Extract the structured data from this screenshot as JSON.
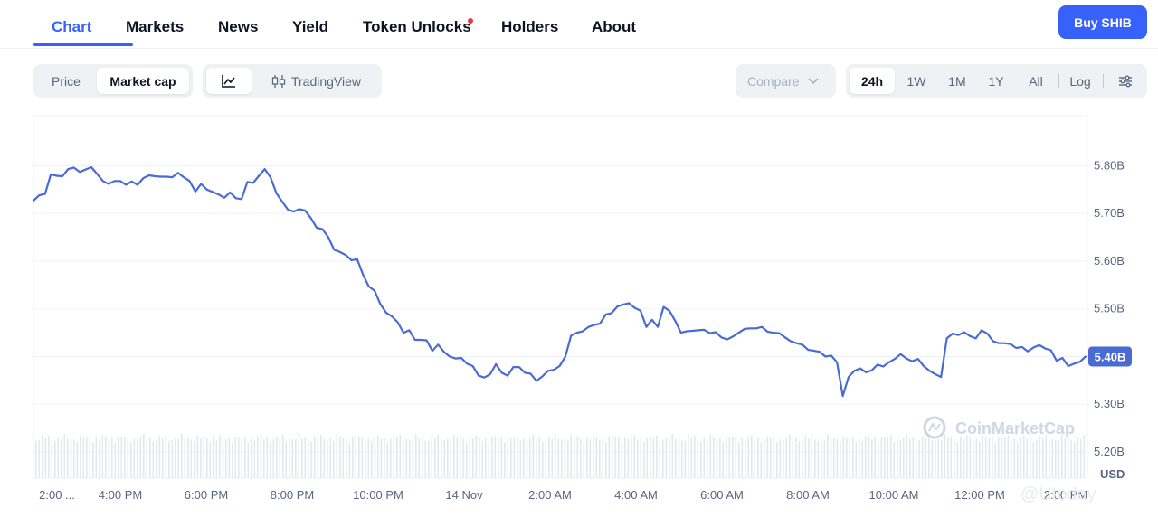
{
  "nav": {
    "tabs": [
      {
        "label": "Chart",
        "active": true
      },
      {
        "label": "Markets"
      },
      {
        "label": "News"
      },
      {
        "label": "Yield"
      },
      {
        "label": "Token Unlocks",
        "has_dot": true
      },
      {
        "label": "Holders"
      },
      {
        "label": "About"
      }
    ],
    "buy_label": "Buy SHIB"
  },
  "toolbar": {
    "price_label": "Price",
    "marketcap_label": "Market cap",
    "tradingview_label": "TradingView",
    "compare_label": "Compare",
    "ranges": [
      "24h",
      "1W",
      "1M",
      "1Y",
      "All"
    ],
    "selected_range": "24h",
    "log_label": "Log",
    "icons": {
      "line": "line-chart-icon",
      "candles": "candlestick-icon",
      "settings": "sliders-icon",
      "compare": "chevron-down-icon"
    }
  },
  "colors": {
    "accent": "#3861fb",
    "line": "#4a6bd4",
    "grid": "#eff2f5",
    "volume": "#e4e8ee"
  },
  "chart_data": {
    "type": "line",
    "series": [
      {
        "values": [
          5.727,
          5.738,
          5.741,
          5.782,
          5.779,
          5.778,
          5.793,
          5.796,
          5.787,
          5.792,
          5.797,
          5.783,
          5.768,
          5.762,
          5.768,
          5.768,
          5.76,
          5.767,
          5.76,
          5.774,
          5.78,
          5.778,
          5.777,
          5.777,
          5.776,
          5.785,
          5.776,
          5.768,
          5.746,
          5.762,
          5.75,
          5.745,
          5.74,
          5.733,
          5.744,
          5.732,
          5.73,
          5.766,
          5.764,
          5.779,
          5.793,
          5.776,
          5.743,
          5.725,
          5.708,
          5.704,
          5.709,
          5.706,
          5.69,
          5.67,
          5.667,
          5.65,
          5.624,
          5.619,
          5.613,
          5.602,
          5.604,
          5.572,
          5.547,
          5.538,
          5.51,
          5.492,
          5.484,
          5.472,
          5.45,
          5.455,
          5.435,
          5.435,
          5.434,
          5.412,
          5.425,
          5.41,
          5.4,
          5.396,
          5.397,
          5.385,
          5.38,
          5.36,
          5.356,
          5.363,
          5.384,
          5.366,
          5.36,
          5.378,
          5.378,
          5.366,
          5.364,
          5.349,
          5.358,
          5.37,
          5.372,
          5.38,
          5.4,
          5.444,
          5.45,
          5.453,
          5.462,
          5.466,
          5.469,
          5.488,
          5.491,
          5.505,
          5.509,
          5.512,
          5.502,
          5.496,
          5.462,
          5.477,
          5.462,
          5.504,
          5.496,
          5.475,
          5.45,
          5.453,
          5.454,
          5.455,
          5.456,
          5.449,
          5.451,
          5.44,
          5.436,
          5.442,
          5.45,
          5.458,
          5.459,
          5.459,
          5.462,
          5.452,
          5.45,
          5.449,
          5.44,
          5.432,
          5.428,
          5.425,
          5.414,
          5.412,
          5.41,
          5.4,
          5.402,
          5.388,
          5.317,
          5.357,
          5.37,
          5.375,
          5.367,
          5.371,
          5.383,
          5.379,
          5.388,
          5.395,
          5.405,
          5.396,
          5.39,
          5.395,
          5.38,
          5.37,
          5.363,
          5.357,
          5.438,
          5.448,
          5.445,
          5.451,
          5.443,
          5.438,
          5.455,
          5.448,
          5.432,
          5.428,
          5.428,
          5.426,
          5.418,
          5.42,
          5.411,
          5.419,
          5.424,
          5.417,
          5.413,
          5.391,
          5.397,
          5.38,
          5.385,
          5.389,
          5.4
        ]
      }
    ],
    "y_ticks": [
      "5.80B",
      "5.70B",
      "5.60B",
      "5.50B",
      "5.40B",
      "5.30B",
      "5.20B"
    ],
    "y_range": [
      5.145,
      5.905
    ],
    "x_ticks": [
      "2:00 ...",
      "4:00 PM",
      "6:00 PM",
      "8:00 PM",
      "10:00 PM",
      "14 Nov",
      "2:00 AM",
      "4:00 AM",
      "6:00 AM",
      "8:00 AM",
      "10:00 AM",
      "12:00 PM",
      "2:00 PM"
    ],
    "current_value_label": "5.40B",
    "unit_label": "USD",
    "watermark": "CoinMarketCap",
    "source_overlay": "@Utoday",
    "grid": true
  }
}
